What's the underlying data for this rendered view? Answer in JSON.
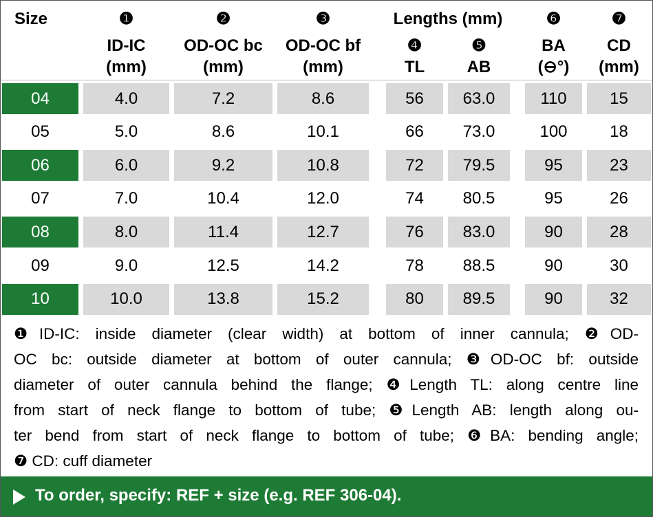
{
  "header": {
    "size": "Size",
    "lengths": "Lengths (mm)",
    "columns": [
      {
        "marker": "❶",
        "label": "ID-IC",
        "unit": "(mm)"
      },
      {
        "marker": "❷",
        "label": "OD-OC bc",
        "unit": "(mm)"
      },
      {
        "marker": "❸",
        "label": "OD-OC bf",
        "unit": "(mm)"
      },
      {
        "marker": "❹",
        "label": "TL"
      },
      {
        "marker": "❺",
        "label": "AB"
      },
      {
        "marker": "❻",
        "label": "BA",
        "unit": "(⊖°)"
      },
      {
        "marker": "❼",
        "label": "CD",
        "unit": "(mm)"
      }
    ]
  },
  "table": {
    "rows": [
      [
        "04",
        "4.0",
        "7.2",
        "8.6",
        "56",
        "63.0",
        "110",
        "15"
      ],
      [
        "05",
        "5.0",
        "8.6",
        "10.1",
        "66",
        "73.0",
        "100",
        "18"
      ],
      [
        "06",
        "6.0",
        "9.2",
        "10.8",
        "72",
        "79.5",
        "95",
        "23"
      ],
      [
        "07",
        "7.0",
        "10.4",
        "12.0",
        "74",
        "80.5",
        "95",
        "26"
      ],
      [
        "08",
        "8.0",
        "11.4",
        "12.7",
        "76",
        "83.0",
        "90",
        "28"
      ],
      [
        "09",
        "9.0",
        "12.5",
        "14.2",
        "78",
        "88.5",
        "90",
        "30"
      ],
      [
        "10",
        "10.0",
        "13.8",
        "15.2",
        "80",
        "89.5",
        "90",
        "32"
      ]
    ]
  },
  "notes": {
    "lines": [
      "❶ID-IC: inside diameter (clear width) at bottom of inner cannula; ❷OD-",
      "OC bc: outside diameter at bottom of outer cannula; ❸OD-OC bf: outside",
      "diameter of outer cannula behind the flange; ❹Length TL: along centre line",
      "from start of neck flange to bottom of tube; ❺Length AB: length along ou-",
      "ter bend from start of neck flange to bottom of tube; ❻BA: bending angle;",
      "❼ CD: cuff diameter"
    ]
  },
  "footer": {
    "text": "To order, specify: REF + size (e.g. REF 306-04)."
  }
}
